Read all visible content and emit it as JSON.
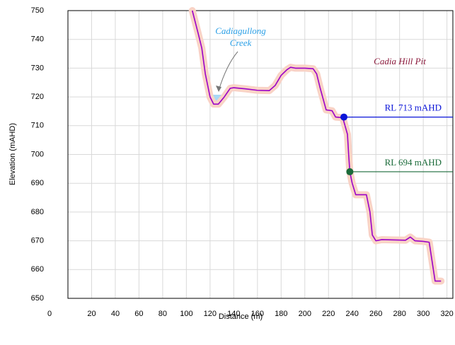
{
  "chart_data": {
    "type": "line",
    "x_label": "Distance (m)",
    "y_label": "Elevation (mAHD)",
    "x": [
      105,
      110,
      113,
      116,
      120,
      123,
      127,
      132,
      137,
      140,
      150,
      160,
      170,
      175,
      180,
      185,
      188,
      192,
      200,
      207,
      210,
      213,
      218,
      223,
      226,
      232,
      236,
      237,
      238,
      240,
      243,
      252,
      255,
      257,
      260,
      265,
      285,
      289,
      293,
      300,
      305,
      310,
      315
    ],
    "series": [
      {
        "color": "#9b00c8",
        "halo": "#f9d3c6",
        "values": [
          750,
          742,
          737,
          728,
          720,
          717.5,
          717.5,
          720,
          723,
          723.2,
          722.8,
          722.3,
          722.2,
          724,
          727.5,
          729.5,
          730.3,
          730,
          730,
          729.8,
          728,
          723,
          715.5,
          715.2,
          713,
          712.8,
          707,
          700,
          694,
          690,
          686,
          686,
          680,
          672,
          670,
          670.4,
          670.2,
          671.3,
          670,
          669.8,
          669.5,
          656,
          656
        ]
      }
    ],
    "xlim": [
      0,
      325
    ],
    "ylim": [
      650,
      750
    ],
    "xticks": [
      0,
      20,
      40,
      60,
      80,
      100,
      120,
      140,
      160,
      180,
      200,
      220,
      240,
      260,
      280,
      300,
      320
    ],
    "yticks": [
      650,
      660,
      670,
      680,
      690,
      700,
      710,
      720,
      730,
      740,
      750
    ],
    "grid": true,
    "levels": [
      {
        "label": "RL 713 mAHD",
        "x": 233,
        "y": 713,
        "color": "#0a14d8"
      },
      {
        "label": "RL 694 mAHD",
        "x": 238,
        "y": 694,
        "color": "#1b6b3a"
      }
    ],
    "annotations": [
      {
        "text": "Cadiagullong",
        "color": "#2a9fe6"
      },
      {
        "text": "Creek",
        "color": "#2a9fe6"
      },
      {
        "text": "Cadia Hill Pit",
        "color": "#8b1a3c"
      }
    ]
  }
}
